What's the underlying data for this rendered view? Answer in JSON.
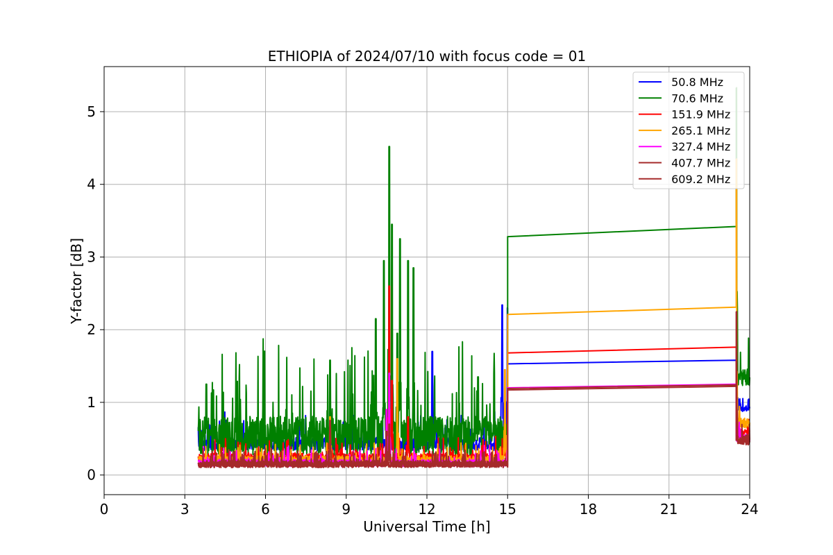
{
  "chart_data": {
    "type": "line",
    "title": "ETHIOPIA of 2024/07/10 with focus code = 01",
    "xlabel": "Universal Time [h]",
    "ylabel": "Y-factor [dB]",
    "xlim": [
      0,
      24
    ],
    "ylim": [
      -0.27,
      5.62
    ],
    "xticks": [
      0,
      3,
      6,
      9,
      12,
      15,
      18,
      21,
      24
    ],
    "yticks": [
      0,
      1,
      2,
      3,
      4,
      5
    ],
    "grid": true,
    "legend_position": "top-right",
    "series": [
      {
        "name": " 50.8 MHz",
        "color": "#0000ff",
        "noisy_segment": {
          "x_start": 3.5,
          "x_end": 15.0,
          "base": 0.4,
          "amplitude": 0.18
        },
        "spikes": [
          [
            12.2,
            1.7
          ],
          [
            14.8,
            2.34
          ],
          [
            15.0,
            2.3
          ],
          [
            10.6,
            1.35
          ],
          [
            9.3,
            0.82
          ]
        ],
        "flat_segment": {
          "x": [
            15.0,
            23.5
          ],
          "y": [
            1.53,
            1.58
          ]
        },
        "tail_segment": {
          "x_start": 23.5,
          "x_end": 24.0,
          "base": 0.9,
          "amplitude": 0.08
        }
      },
      {
        "name": " 70.6 MHz",
        "color": "#008000",
        "noisy_segment": {
          "x_start": 3.5,
          "x_end": 15.0,
          "base": 0.45,
          "amplitude": 0.55
        },
        "spikes": [
          [
            10.6,
            4.52
          ],
          [
            10.7,
            3.45
          ],
          [
            10.4,
            2.95
          ],
          [
            11.0,
            3.25
          ],
          [
            11.3,
            2.95
          ],
          [
            11.5,
            2.85
          ],
          [
            10.1,
            2.15
          ],
          [
            10.9,
            1.95
          ],
          [
            8.4,
            1.58
          ],
          [
            3.8,
            1.25
          ],
          [
            13.9,
            1.35
          ],
          [
            14.5,
            1.4
          ]
        ],
        "flat_segment": {
          "x": [
            15.0,
            23.5
          ],
          "y": [
            3.28,
            3.42
          ]
        },
        "tail_segment": {
          "x_start": 23.5,
          "x_end": 24.0,
          "base": 1.3,
          "amplitude": 0.25
        },
        "tail_spike": [
          23.5,
          5.33
        ]
      },
      {
        "name": " 151.9 MHz",
        "color": "#ff0000",
        "noisy_segment": {
          "x_start": 3.5,
          "x_end": 15.0,
          "base": 0.22,
          "amplitude": 0.12
        },
        "spikes": [
          [
            10.6,
            2.6
          ],
          [
            10.7,
            1.3
          ],
          [
            10.5,
            0.9
          ],
          [
            11.3,
            0.8
          ],
          [
            14.9,
            0.6
          ]
        ],
        "flat_segment": {
          "x": [
            15.0,
            23.5
          ],
          "y": [
            1.68,
            1.76
          ]
        },
        "tail_segment": {
          "x_start": 23.5,
          "x_end": 24.0,
          "base": 0.55,
          "amplitude": 0.12
        }
      },
      {
        "name": " 265.1 MHz",
        "color": "#ffa500",
        "noisy_segment": {
          "x_start": 3.5,
          "x_end": 15.0,
          "base": 0.2,
          "amplitude": 0.1
        },
        "spikes": [
          [
            10.9,
            1.6
          ],
          [
            8.4,
            0.8
          ],
          [
            10.6,
            1.0
          ],
          [
            14.9,
            1.45
          ]
        ],
        "flat_segment": {
          "x": [
            15.0,
            23.5
          ],
          "y": [
            2.21,
            2.31
          ]
        },
        "tail_segment": {
          "x_start": 23.5,
          "x_end": 24.0,
          "base": 0.7,
          "amplitude": 0.15
        },
        "tail_spike": [
          23.5,
          4.35
        ]
      },
      {
        "name": " 327.4 MHz",
        "color": "#ff00ff",
        "noisy_segment": {
          "x_start": 3.5,
          "x_end": 15.0,
          "base": 0.15,
          "amplitude": 0.1
        },
        "spikes": [
          [
            10.6,
            1.4
          ],
          [
            10.5,
            0.9
          ]
        ],
        "flat_segment": {
          "x": [
            15.0,
            23.5
          ],
          "y": [
            1.2,
            1.25
          ]
        },
        "tail_segment": {
          "x_start": 23.5,
          "x_end": 24.0,
          "base": 0.5,
          "amplitude": 0.1
        }
      },
      {
        "name": " 407.7 MHz",
        "color": "#a52a2a",
        "noisy_segment": {
          "x_start": 3.5,
          "x_end": 15.0,
          "base": 0.14,
          "amplitude": 0.09
        },
        "spikes": [
          [
            8.4,
            0.75
          ],
          [
            10.6,
            0.7
          ]
        ],
        "flat_segment": {
          "x": [
            15.0,
            23.5
          ],
          "y": [
            1.19,
            1.24
          ]
        },
        "tail_segment": {
          "x_start": 23.5,
          "x_end": 24.0,
          "base": 0.48,
          "amplitude": 0.12
        }
      },
      {
        "name": " 609.2 MHz",
        "color": "#a52a2a",
        "noisy_segment": {
          "x_start": 3.5,
          "x_end": 15.0,
          "base": 0.13,
          "amplitude": 0.08
        },
        "spikes": [
          [
            10.5,
            0.6
          ]
        ],
        "flat_segment": {
          "x": [
            15.0,
            23.5
          ],
          "y": [
            1.17,
            1.22
          ]
        },
        "tail_segment": {
          "x_start": 23.5,
          "x_end": 24.0,
          "base": 0.45,
          "amplitude": 0.1
        },
        "tail_spike": [
          23.5,
          2.25
        ]
      }
    ]
  }
}
